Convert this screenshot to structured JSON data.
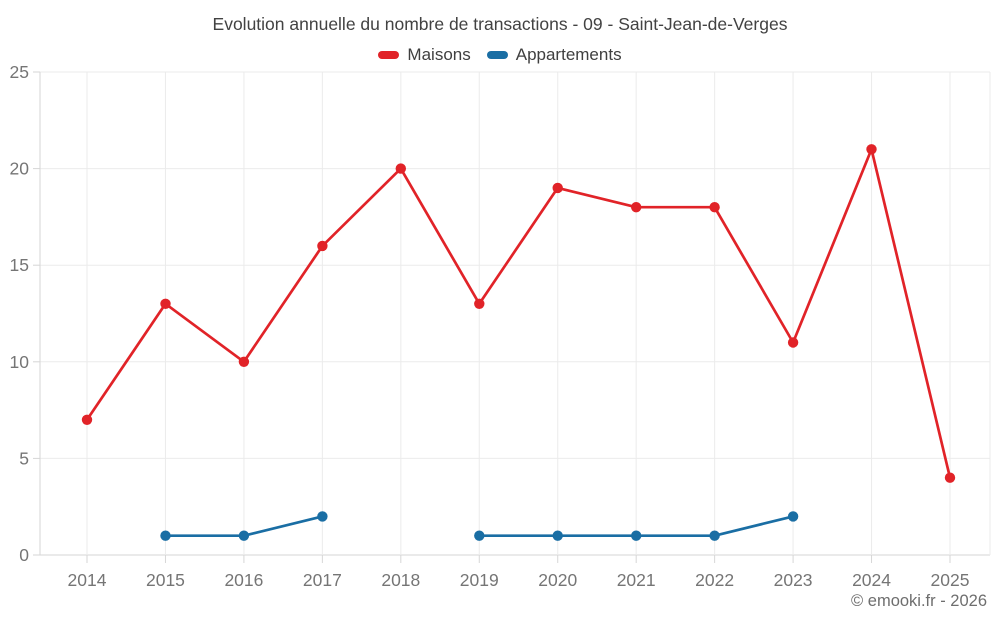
{
  "chart_data": {
    "type": "line",
    "title": "Evolution annuelle du nombre de transactions - 09 - Saint-Jean-de-Verges",
    "categories": [
      "2014",
      "2015",
      "2016",
      "2017",
      "2018",
      "2019",
      "2020",
      "2021",
      "2022",
      "2023",
      "2024",
      "2025"
    ],
    "series": [
      {
        "name": "Maisons",
        "color": "#e12328",
        "values": [
          7,
          13,
          10,
          16,
          20,
          13,
          19,
          18,
          18,
          11,
          21,
          4
        ]
      },
      {
        "name": "Appartements",
        "color": "#1a6ea4",
        "values": [
          null,
          1,
          1,
          2,
          null,
          1,
          1,
          1,
          1,
          2,
          null,
          null
        ]
      }
    ],
    "xlabel": "",
    "ylabel": "",
    "ylim": [
      0,
      25
    ],
    "yticks": [
      0,
      5,
      10,
      15,
      20,
      25
    ],
    "grid": true,
    "legend_position": "top",
    "attribution": "© emooki.fr - 2026",
    "colors": {
      "gridline": "#ebebeb",
      "axis_line": "#d6d6d6",
      "tick": "#d6d6d6",
      "axis_label_text": "#757575",
      "title_text": "#424242",
      "legend_text": "#3f3f3f",
      "attribution_text": "#6e6e6e",
      "background": "#ffffff"
    }
  }
}
